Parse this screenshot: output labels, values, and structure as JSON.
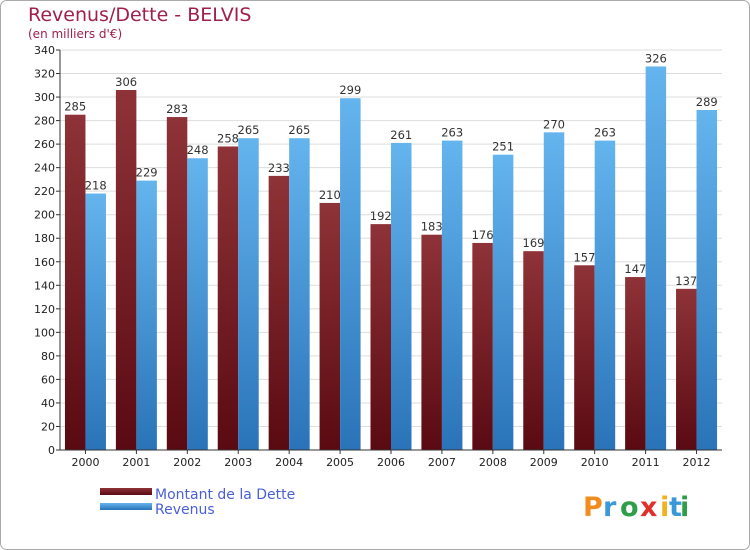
{
  "chart_data": {
    "type": "bar",
    "title": "Revenus/Dette - BELVIS",
    "subtitle": "(en milliers d'€)",
    "xlabel": "",
    "ylabel": "",
    "ylim": [
      0,
      340
    ],
    "ytick_step": 20,
    "grid": true,
    "legend_position": "bottom-left",
    "categories": [
      "2000",
      "2001",
      "2002",
      "2003",
      "2004",
      "2005",
      "2006",
      "2007",
      "2008",
      "2009",
      "2010",
      "2011",
      "2012"
    ],
    "series": [
      {
        "name": "Montant de la Dette",
        "values": [
          285,
          306,
          283,
          258,
          233,
          210,
          192,
          183,
          176,
          169,
          157,
          147,
          137
        ]
      },
      {
        "name": "Revenus",
        "values": [
          218,
          229,
          248,
          265,
          265,
          299,
          261,
          263,
          251,
          270,
          263,
          326,
          289
        ]
      }
    ]
  },
  "colors": {
    "dette_dark": "#5a0a12",
    "dette_light": "#8e3338",
    "revenus_dark": "#2a73b8",
    "revenus_light": "#64b4ee",
    "grid": "#dddddd",
    "title": "#a0204a",
    "legend_text": "#4a5fd8"
  },
  "logo": {
    "text": "Proxiti",
    "letters": [
      "P",
      "r",
      "o",
      "x",
      "i",
      "t",
      "i"
    ],
    "letter_colors": [
      "#f28c1e",
      "#3a9ad9",
      "#2e9e48",
      "#e0302c",
      "#f2b21e",
      "#3a9ad9",
      "#2e9e48"
    ]
  }
}
